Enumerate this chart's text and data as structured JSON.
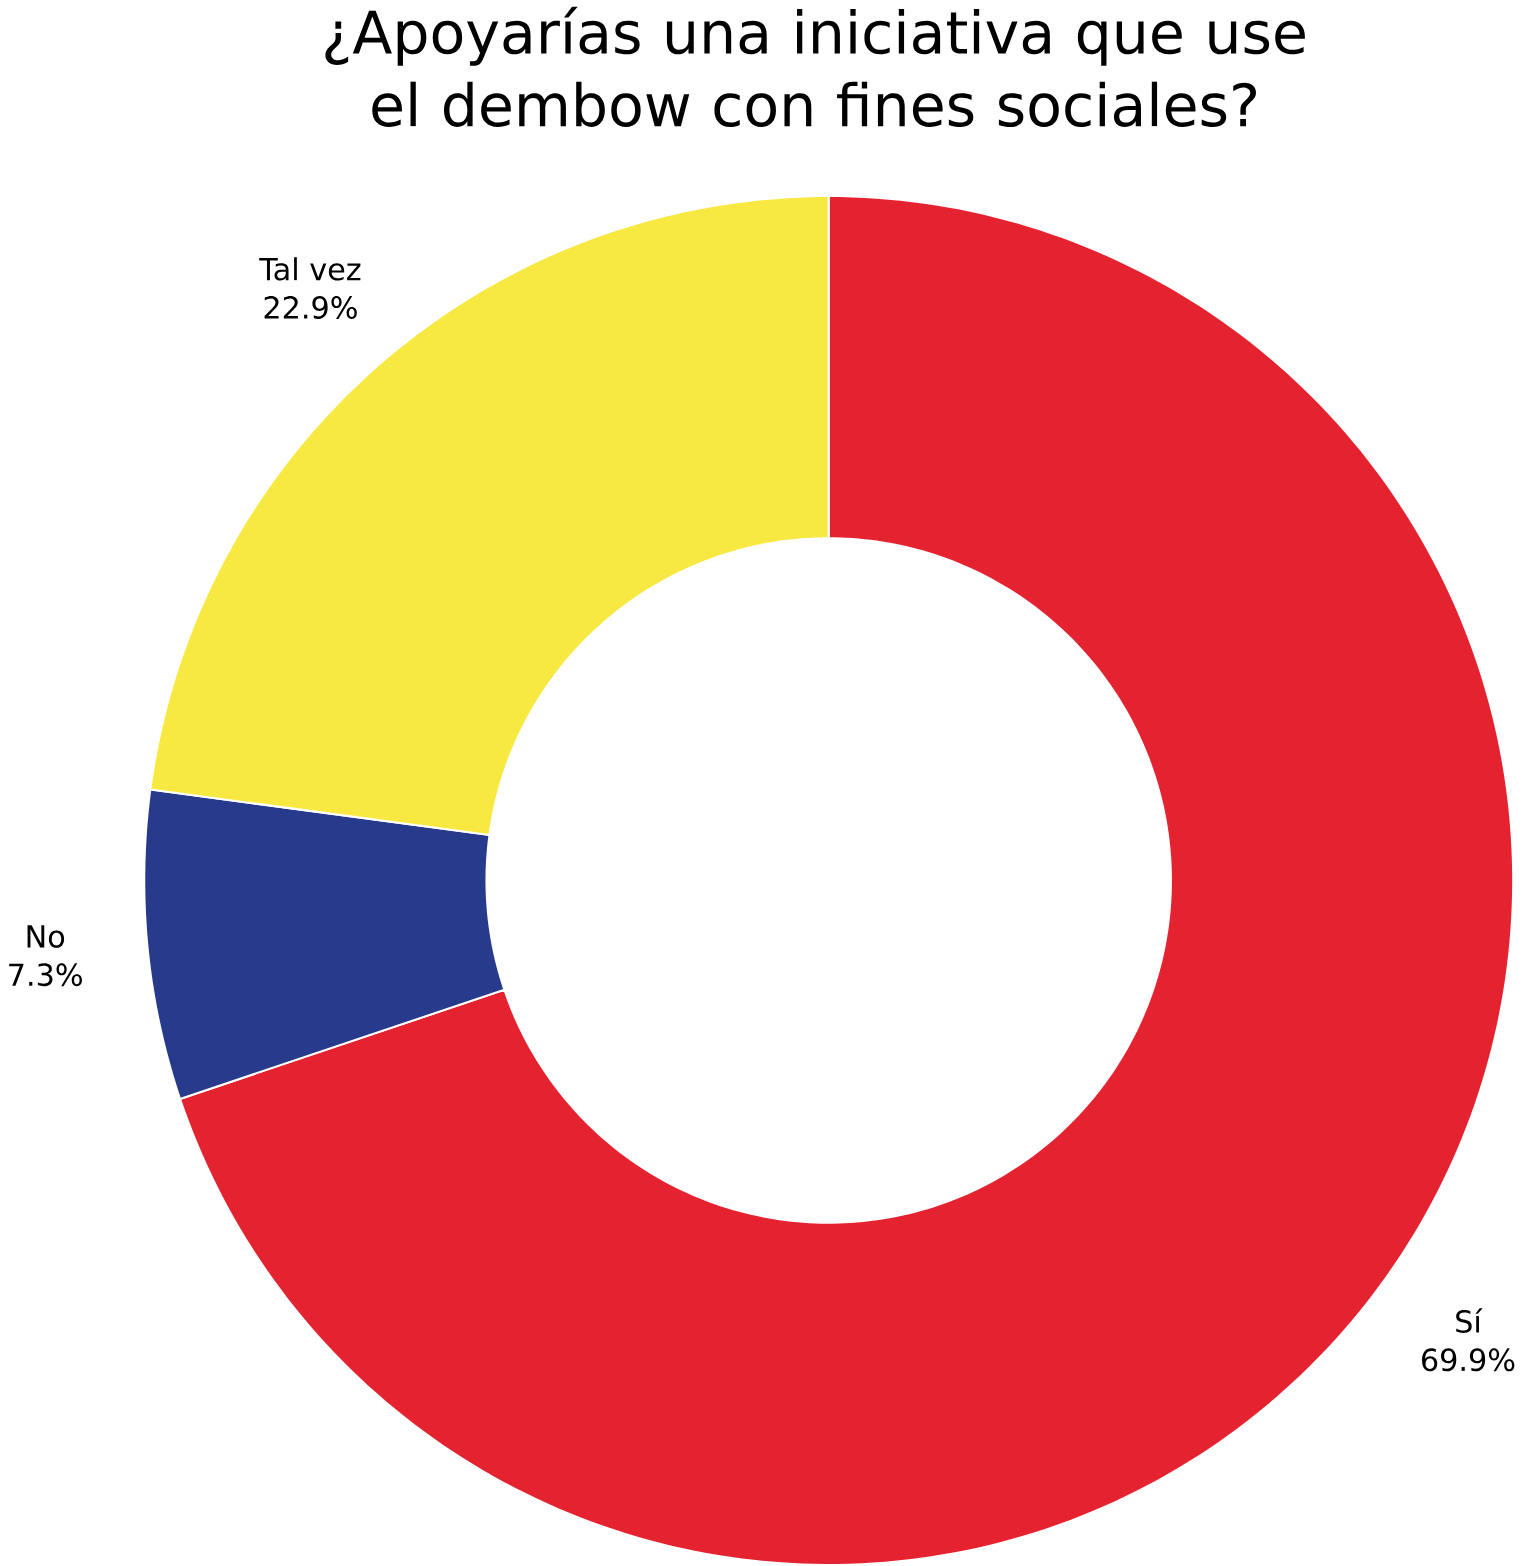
{
  "chart_data": {
    "type": "donut",
    "title": "¿Apoyarías una iniciativa que use el dembow con fines sociales?",
    "categories": [
      "Sí",
      "No",
      "Tal vez"
    ],
    "values": [
      69.9,
      7.3,
      22.9
    ],
    "value_labels": [
      "69.9%",
      "7.3%",
      "22.9%"
    ],
    "colors": [
      "#e52330",
      "#283a8c",
      "#f7e942"
    ]
  }
}
